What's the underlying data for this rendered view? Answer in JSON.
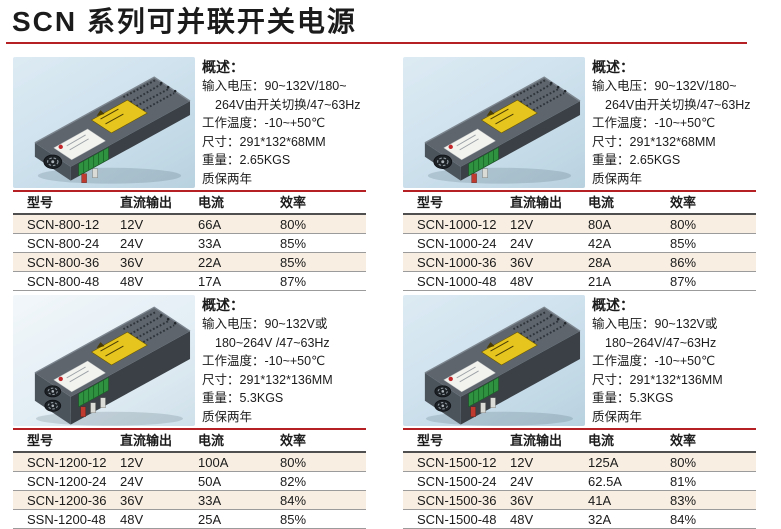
{
  "page": {
    "title": "SCN 系列可并联开关电源"
  },
  "colors": {
    "accent_red": "#b52025",
    "table_row_shade": "#f8eee2",
    "photo_background_blue": "#cfe2ee"
  },
  "sections": [
    {
      "name": "SCN-800",
      "image": {
        "kind": "product-photo",
        "fans": 1
      },
      "overview": {
        "heading": "概述：",
        "lines": [
          "输入电压：90~132V/180~",
          "264V由开关切换/47~63Hz",
          "工作温度：-10~+50℃",
          "尺寸：291*132*68MM",
          "重量：2.65KGS",
          "质保两年"
        ]
      },
      "table": {
        "headers": [
          "型号",
          "直流输出",
          "电流",
          "效率"
        ],
        "rows": [
          [
            "SCN-800-12",
            "12V",
            "66A",
            "80%"
          ],
          [
            "SCN-800-24",
            "24V",
            "33A",
            "85%"
          ],
          [
            "SCN-800-36",
            "36V",
            "22A",
            "85%"
          ],
          [
            "SCN-800-48",
            "48V",
            "17A",
            "87%"
          ]
        ]
      }
    },
    {
      "name": "SCN-1000",
      "image": {
        "kind": "product-photo",
        "fans": 1
      },
      "overview": {
        "heading": "概述：",
        "lines": [
          "输入电压：90~132V/180~",
          "264V由开关切换/47~63Hz",
          "工作温度：-10~+50℃",
          "尺寸：291*132*68MM",
          "重量：2.65KGS",
          "质保两年"
        ]
      },
      "table": {
        "headers": [
          "型号",
          "直流输出",
          "电流",
          "效率"
        ],
        "rows": [
          [
            "SCN-1000-12",
            "12V",
            "80A",
            "80%"
          ],
          [
            "SCN-1000-24",
            "24V",
            "42A",
            "85%"
          ],
          [
            "SCN-1000-36",
            "36V",
            "28A",
            "86%"
          ],
          [
            "SCN-1000-48",
            "48V",
            "21A",
            "87%"
          ]
        ]
      }
    },
    {
      "name": "SCN-1200",
      "image": {
        "kind": "product-photo",
        "fans": 2
      },
      "overview": {
        "heading": "概述：",
        "lines": [
          "输入电压：90~132V或",
          "180~264V /47~63Hz",
          "工作温度：-10~+50℃",
          "尺寸：291*132*136MM",
          "重量：5.3KGS",
          "质保两年"
        ]
      },
      "table": {
        "headers": [
          "型号",
          "直流输出",
          "电流",
          "效率"
        ],
        "rows": [
          [
            "SCN-1200-12",
            "12V",
            "100A",
            "80%"
          ],
          [
            "SCN-1200-24",
            "24V",
            "50A",
            "82%"
          ],
          [
            "SCN-1200-36",
            "36V",
            "33A",
            "84%"
          ],
          [
            "SSN-1200-48",
            "48V",
            "25A",
            "85%"
          ]
        ]
      }
    },
    {
      "name": "SCN-1500",
      "image": {
        "kind": "product-photo",
        "fans": 2
      },
      "overview": {
        "heading": "概述：",
        "lines": [
          "输入电压：90~132V或",
          "180~264V/47~63Hz",
          "工作温度：-10~+50℃",
          "尺寸：291*132*136MM",
          "重量：5.3KGS",
          "质保两年"
        ]
      },
      "table": {
        "headers": [
          "型号",
          "直流输出",
          "电流",
          "效率"
        ],
        "rows": [
          [
            "SCN-1500-12",
            "12V",
            "125A",
            "80%"
          ],
          [
            "SCN-1500-24",
            "24V",
            "62.5A",
            "81%"
          ],
          [
            "SCN-1500-36",
            "36V",
            "41A",
            "83%"
          ],
          [
            "SCN-1500-48",
            "48V",
            "32A",
            "84%"
          ]
        ]
      }
    }
  ]
}
